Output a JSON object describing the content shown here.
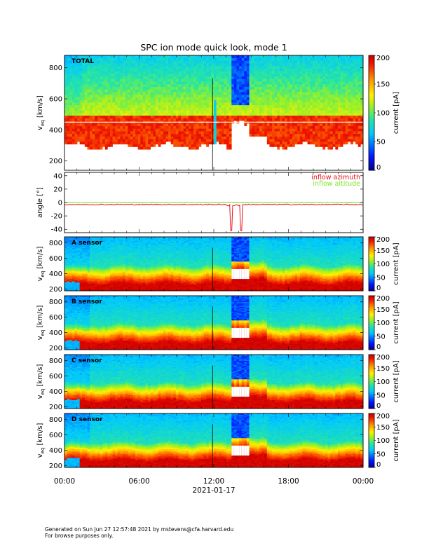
{
  "page": {
    "footer_line1": "Generated on Sun Jun 27 12:57:48 2021 by mstevens@cfa.harvard.edu",
    "footer_line2": "For browse purposes only."
  },
  "chart_data": {
    "type": "heatmap",
    "title": "SPC ion mode quick look, mode 1",
    "xlabel": "2021-01-17",
    "x_ticks": [
      "00:00",
      "06:00",
      "12:00",
      "18:00",
      "00:00"
    ],
    "x_range_hours": [
      0,
      24
    ],
    "panels": [
      {
        "id": "total",
        "type": "heatmap",
        "label": "TOTAL",
        "ylabel": "v",
        "ylabel_sub": "eq",
        "yunits": " [km/s]",
        "ylim": [
          140,
          880
        ],
        "yticks": [
          200,
          400,
          600,
          800
        ],
        "colorbar": {
          "label": "current [pA]",
          "range": [
            0,
            200
          ],
          "ticks": [
            0,
            50,
            100,
            150,
            200
          ]
        }
      },
      {
        "id": "angle",
        "type": "line",
        "ylabel": "angle [°]",
        "ylim": [
          -45,
          45
        ],
        "yticks": [
          -40,
          -20,
          0,
          20,
          40
        ],
        "series": [
          {
            "name": "inflow azimuth",
            "color": "#e8141e",
            "baseline": -3
          },
          {
            "name": "inflow altitude",
            "color": "#7ee82a",
            "baseline": 0
          }
        ]
      },
      {
        "id": "a",
        "type": "heatmap",
        "label": "A sensor",
        "ylabel": "v",
        "ylabel_sub": "eq",
        "yunits": " [km/s]",
        "ylim": [
          175,
          880
        ],
        "yticks": [
          200,
          400,
          600,
          800
        ],
        "colorbar": {
          "label": "current [pA]",
          "range": [
            0,
            200
          ],
          "ticks": [
            0,
            50,
            100,
            150,
            200
          ]
        }
      },
      {
        "id": "b",
        "type": "heatmap",
        "label": "B sensor",
        "ylabel": "v",
        "ylabel_sub": "eq",
        "yunits": " [km/s]",
        "ylim": [
          175,
          880
        ],
        "yticks": [
          200,
          400,
          600,
          800
        ],
        "colorbar": {
          "label": "current [pA]",
          "range": [
            0,
            200
          ],
          "ticks": [
            0,
            50,
            100,
            150,
            200
          ]
        }
      },
      {
        "id": "c",
        "type": "heatmap",
        "label": "C sensor",
        "ylabel": "v",
        "ylabel_sub": "eq",
        "yunits": " [km/s]",
        "ylim": [
          175,
          880
        ],
        "yticks": [
          200,
          400,
          600,
          800
        ],
        "colorbar": {
          "label": "current [pA]",
          "range": [
            0,
            200
          ],
          "ticks": [
            0,
            50,
            100,
            150,
            200
          ]
        }
      },
      {
        "id": "d",
        "type": "heatmap",
        "label": "D sensor",
        "ylabel": "v",
        "ylabel_sub": "eq",
        "yunits": " [km/s]",
        "ylim": [
          175,
          880
        ],
        "yticks": [
          200,
          400,
          600,
          800
        ],
        "colorbar": {
          "label": "current [pA]",
          "range": [
            0,
            200
          ],
          "ticks": [
            0,
            50,
            100,
            150,
            200
          ]
        }
      }
    ]
  }
}
